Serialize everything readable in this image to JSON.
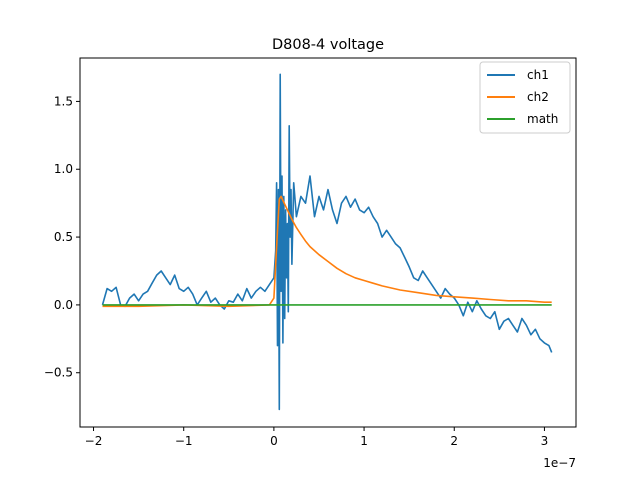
{
  "chart_data": {
    "type": "line",
    "title": "D808-4 voltage",
    "xlabel": "",
    "ylabel": "",
    "x_offset_label": "1e−7",
    "xlim": [
      -2.15,
      3.35
    ],
    "ylim": [
      -0.9,
      1.82
    ],
    "x_ticks": [
      -2,
      -1,
      0,
      1,
      2,
      3
    ],
    "x_tick_labels": [
      "−2",
      "−1",
      "0",
      "1",
      "2",
      "3"
    ],
    "y_ticks": [
      -0.5,
      0.0,
      0.5,
      1.0,
      1.5
    ],
    "y_tick_labels": [
      "−0.5",
      "0.0",
      "0.5",
      "1.0",
      "1.5"
    ],
    "grid": false,
    "legend_position": "top-right",
    "series": [
      {
        "name": "ch1",
        "color": "#1f77b4",
        "x": [
          -1.9,
          -1.85,
          -1.8,
          -1.75,
          -1.7,
          -1.65,
          -1.6,
          -1.55,
          -1.5,
          -1.45,
          -1.4,
          -1.35,
          -1.3,
          -1.25,
          -1.2,
          -1.15,
          -1.1,
          -1.05,
          -1.0,
          -0.95,
          -0.9,
          -0.85,
          -0.8,
          -0.75,
          -0.7,
          -0.65,
          -0.6,
          -0.55,
          -0.5,
          -0.45,
          -0.4,
          -0.35,
          -0.3,
          -0.25,
          -0.2,
          -0.15,
          -0.1,
          -0.05,
          0.0,
          0.02,
          0.03,
          0.04,
          0.05,
          0.06,
          0.07,
          0.08,
          0.09,
          0.1,
          0.11,
          0.12,
          0.13,
          0.14,
          0.15,
          0.16,
          0.17,
          0.18,
          0.19,
          0.2,
          0.22,
          0.25,
          0.3,
          0.35,
          0.4,
          0.45,
          0.5,
          0.55,
          0.6,
          0.65,
          0.7,
          0.75,
          0.8,
          0.85,
          0.9,
          0.95,
          1.0,
          1.05,
          1.1,
          1.15,
          1.2,
          1.25,
          1.3,
          1.35,
          1.4,
          1.45,
          1.5,
          1.55,
          1.6,
          1.65,
          1.7,
          1.75,
          1.8,
          1.85,
          1.9,
          1.95,
          2.0,
          2.05,
          2.1,
          2.15,
          2.2,
          2.25,
          2.3,
          2.35,
          2.4,
          2.45,
          2.5,
          2.55,
          2.6,
          2.65,
          2.7,
          2.75,
          2.8,
          2.85,
          2.9,
          2.95,
          3.0,
          3.05,
          3.08
        ],
        "y": [
          0.0,
          0.12,
          0.1,
          0.13,
          0.0,
          -0.01,
          0.05,
          0.08,
          0.03,
          0.08,
          0.1,
          0.16,
          0.22,
          0.25,
          0.2,
          0.15,
          0.22,
          0.12,
          0.1,
          0.13,
          0.08,
          0.0,
          0.05,
          0.1,
          0.02,
          0.05,
          0.0,
          -0.03,
          0.03,
          0.02,
          0.08,
          0.03,
          0.12,
          0.05,
          0.1,
          0.13,
          0.1,
          0.15,
          0.2,
          0.4,
          0.9,
          -0.3,
          0.85,
          -0.77,
          1.7,
          0.1,
          0.95,
          -0.28,
          0.8,
          -0.1,
          0.7,
          0.2,
          0.6,
          -0.05,
          1.32,
          0.5,
          0.85,
          0.3,
          0.9,
          0.65,
          0.8,
          0.75,
          0.95,
          0.65,
          0.8,
          0.7,
          0.85,
          0.7,
          0.6,
          0.75,
          0.8,
          0.72,
          0.78,
          0.7,
          0.68,
          0.72,
          0.65,
          0.6,
          0.5,
          0.55,
          0.5,
          0.45,
          0.42,
          0.35,
          0.28,
          0.2,
          0.18,
          0.25,
          0.2,
          0.15,
          0.1,
          0.05,
          0.12,
          0.08,
          0.05,
          0.0,
          -0.08,
          0.02,
          -0.05,
          0.03,
          -0.03,
          -0.08,
          -0.1,
          -0.05,
          -0.18,
          -0.12,
          -0.1,
          -0.15,
          -0.2,
          -0.1,
          -0.15,
          -0.22,
          -0.18,
          -0.25,
          -0.28,
          -0.3,
          -0.35
        ]
      },
      {
        "name": "ch2",
        "color": "#ff7f0e",
        "x": [
          -1.9,
          -1.5,
          -1.0,
          -0.5,
          -0.05,
          0.0,
          0.02,
          0.04,
          0.06,
          0.08,
          0.1,
          0.15,
          0.2,
          0.25,
          0.3,
          0.35,
          0.4,
          0.5,
          0.6,
          0.7,
          0.8,
          0.9,
          1.0,
          1.1,
          1.2,
          1.4,
          1.6,
          1.8,
          2.0,
          2.2,
          2.4,
          2.6,
          2.8,
          3.0,
          3.08
        ],
        "y": [
          -0.01,
          -0.01,
          0.0,
          -0.01,
          0.0,
          0.05,
          0.3,
          0.55,
          0.78,
          0.8,
          0.77,
          0.7,
          0.63,
          0.57,
          0.52,
          0.47,
          0.43,
          0.37,
          0.32,
          0.27,
          0.23,
          0.2,
          0.18,
          0.16,
          0.14,
          0.11,
          0.09,
          0.07,
          0.06,
          0.05,
          0.04,
          0.03,
          0.03,
          0.02,
          0.02
        ]
      },
      {
        "name": "math",
        "color": "#2ca02c",
        "x": [
          -1.9,
          3.08
        ],
        "y": [
          0.0,
          0.0
        ]
      }
    ]
  }
}
